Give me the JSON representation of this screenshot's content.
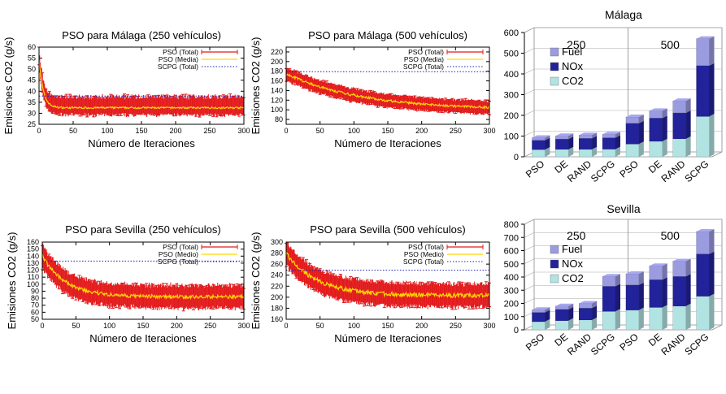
{
  "line_legend": {
    "total": "PSO (Total)",
    "mean": "PSO (Media)",
    "mean_alt": "PSO (Medio)",
    "scpg": "SCPG (Total)"
  },
  "bar_legend": {
    "fuel": "Fuel",
    "nox": "NOx",
    "co2": "CO2"
  },
  "colors": {
    "total": "#e31a1c",
    "mean": "#ffd700",
    "scpg": "#1f1fb4",
    "fuel": "#9b9be0",
    "nox": "#22229a",
    "co2": "#b2e3e3"
  },
  "chart_data": [
    {
      "type": "line",
      "title": "PSO para Málaga (250 vehículos)",
      "xlabel": "Número de Iteraciones",
      "ylabel": "Emisiones CO2 (g/s)",
      "xlim": [
        0,
        300
      ],
      "ylim": [
        25,
        60
      ],
      "xticks": [
        0,
        50,
        100,
        150,
        200,
        250,
        300
      ],
      "yticks": [
        25,
        30,
        35,
        40,
        45,
        50,
        55,
        60
      ],
      "legend_style": "media",
      "legend": "top-right",
      "grid": false,
      "mean_curve": {
        "start": 55,
        "end": 32.5,
        "tau": 6,
        "noise": 0.4
      },
      "spread": {
        "low": [
          4,
          2.5
        ],
        "high": [
          6,
          4
        ]
      },
      "scpg": 37.8
    },
    {
      "type": "line",
      "title": "PSO para Málaga (500 vehículos)",
      "xlabel": "Número de Iteraciones",
      "ylabel": "Emisiones CO2 (g/s)",
      "xlim": [
        0,
        300
      ],
      "ylim": [
        70,
        230
      ],
      "xticks": [
        0,
        50,
        100,
        150,
        200,
        250,
        300
      ],
      "yticks": [
        80,
        100,
        120,
        140,
        160,
        180,
        200,
        220
      ],
      "legend_style": "media",
      "legend": "top-right",
      "grid": false,
      "mean_curve": {
        "start": 175,
        "end": 100,
        "tau": 110,
        "noise": 2.5
      },
      "spread": {
        "low": [
          12,
          15
        ],
        "high": [
          12,
          15
        ]
      },
      "scpg": 179
    },
    {
      "type": "line",
      "title": "PSO para Sevilla (250 vehículos)",
      "xlabel": "Número de Iteraciones",
      "ylabel": "Emisiones CO2 (g/s)",
      "xlim": [
        0,
        300
      ],
      "ylim": [
        50,
        160
      ],
      "xticks": [
        0,
        50,
        100,
        150,
        200,
        250,
        300
      ],
      "yticks": [
        50,
        60,
        70,
        80,
        90,
        100,
        110,
        120,
        130,
        140,
        150,
        160
      ],
      "legend_style": "medio",
      "legend": "top-right",
      "grid": false,
      "mean_curve": {
        "start": 140,
        "end": 82,
        "tau": 35,
        "noise": 2.5
      },
      "spread": {
        "low": [
          14,
          18
        ],
        "high": [
          14,
          18
        ]
      },
      "scpg": 133
    },
    {
      "type": "line",
      "title": "PSO para Sevilla (500 vehículos)",
      "xlabel": "Número de Iteraciones",
      "ylabel": "Emisiones CO2 (g/s)",
      "xlim": [
        0,
        300
      ],
      "ylim": [
        160,
        300
      ],
      "xticks": [
        0,
        50,
        100,
        150,
        200,
        250,
        300
      ],
      "yticks": [
        160,
        180,
        200,
        220,
        240,
        260,
        280,
        300
      ],
      "legend_style": "medio",
      "legend": "top-right",
      "grid": false,
      "mean_curve": {
        "start": 280,
        "end": 203,
        "tau": 45,
        "noise": 4
      },
      "spread": {
        "low": [
          20,
          22
        ],
        "high": [
          20,
          22
        ]
      },
      "scpg": 249
    },
    {
      "type": "bar",
      "title": "Málaga",
      "groups": [
        "250",
        "500"
      ],
      "categories": [
        "PSO",
        "DE",
        "RAND",
        "SCPG",
        "PSO",
        "DE",
        "RAND",
        "SCPG"
      ],
      "ylim": [
        0,
        600
      ],
      "yticks": [
        0,
        100,
        200,
        300,
        400,
        500,
        600
      ],
      "legend": "upper-left",
      "series": [
        {
          "name": "CO2",
          "values": [
            35,
            36,
            36,
            37,
            62,
            75,
            87,
            195
          ]
        },
        {
          "name": "NOx",
          "values": [
            45,
            50,
            53,
            55,
            100,
            112,
            125,
            245
          ]
        },
        {
          "name": "Fuel",
          "values": [
            12,
            15,
            16,
            17,
            30,
            35,
            58,
            130
          ]
        }
      ]
    },
    {
      "type": "bar",
      "title": "Sevilla",
      "groups": [
        "250",
        "500"
      ],
      "categories": [
        "PSO",
        "DE",
        "RAND",
        "SCPG",
        "PSO",
        "DE",
        "RAND",
        "SCPG"
      ],
      "ylim": [
        0,
        800
      ],
      "yticks": [
        0,
        100,
        200,
        300,
        400,
        500,
        600,
        700,
        800
      ],
      "legend": "upper-left",
      "series": [
        {
          "name": "CO2",
          "values": [
            62,
            70,
            75,
            140,
            150,
            170,
            180,
            255
          ]
        },
        {
          "name": "NOx",
          "values": [
            70,
            85,
            90,
            190,
            190,
            210,
            225,
            320
          ]
        },
        {
          "name": "Fuel",
          "values": [
            20,
            25,
            35,
            75,
            85,
            105,
            115,
            170
          ]
        }
      ]
    }
  ]
}
